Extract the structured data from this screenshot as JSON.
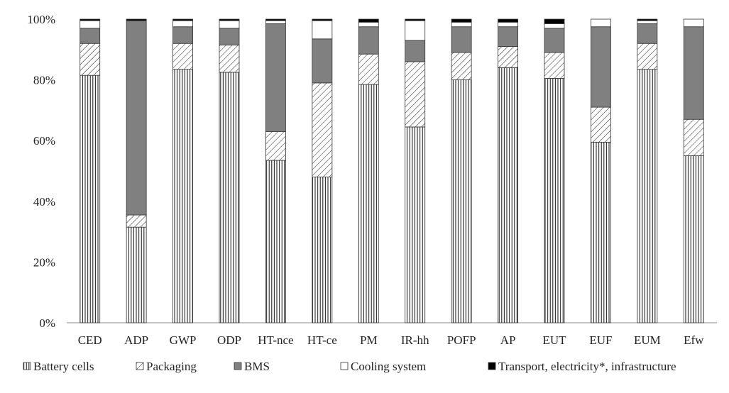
{
  "chart_data": {
    "type": "bar",
    "stacked": true,
    "percent": true,
    "title": "",
    "xlabel": "",
    "ylabel": "",
    "ylim": [
      0,
      100
    ],
    "yticks": [
      "0%",
      "20%",
      "40%",
      "60%",
      "80%",
      "100%"
    ],
    "grid": false,
    "legend_position": "bottom",
    "categories": [
      "CED",
      "ADP",
      "GWP",
      "ODP",
      "HT-nce",
      "HT-ce",
      "PM",
      "IR-hh",
      "POFP",
      "AP",
      "EUT",
      "EUF",
      "EUM",
      "Efw"
    ],
    "series": [
      {
        "name": "Battery cells",
        "pattern": "vertical-lines",
        "color": "#ffffff",
        "values": [
          81.5,
          31.5,
          83.5,
          82.5,
          53.5,
          48,
          78.5,
          64.5,
          80,
          84,
          80.5,
          59.5,
          83.5,
          55
        ]
      },
      {
        "name": "Packaging",
        "pattern": "diagonal-hatch",
        "color": "#ffffff",
        "values": [
          10.5,
          4,
          8.5,
          9,
          9.5,
          31,
          10,
          21.5,
          9,
          7,
          8.5,
          11.5,
          8.5,
          12
        ]
      },
      {
        "name": "BMS",
        "pattern": "solid",
        "color": "#808080",
        "values": [
          5,
          64,
          5.5,
          5.5,
          35.5,
          14.5,
          9,
          7,
          8.5,
          6.5,
          8,
          26.5,
          6.5,
          30.5
        ]
      },
      {
        "name": "Cooling system",
        "pattern": "solid",
        "color": "#ffffff",
        "values": [
          2.5,
          0,
          2,
          2.5,
          1,
          6,
          1.5,
          6.5,
          1.5,
          1.5,
          1.5,
          2.5,
          1,
          2.5
        ]
      },
      {
        "name": "Transport, electricity*, infrastructure",
        "pattern": "solid",
        "color": "#000000",
        "values": [
          0.5,
          0.5,
          0.5,
          0.5,
          0.5,
          0.5,
          1,
          0.5,
          1,
          1,
          1.5,
          0,
          0.5,
          0
        ]
      }
    ]
  }
}
